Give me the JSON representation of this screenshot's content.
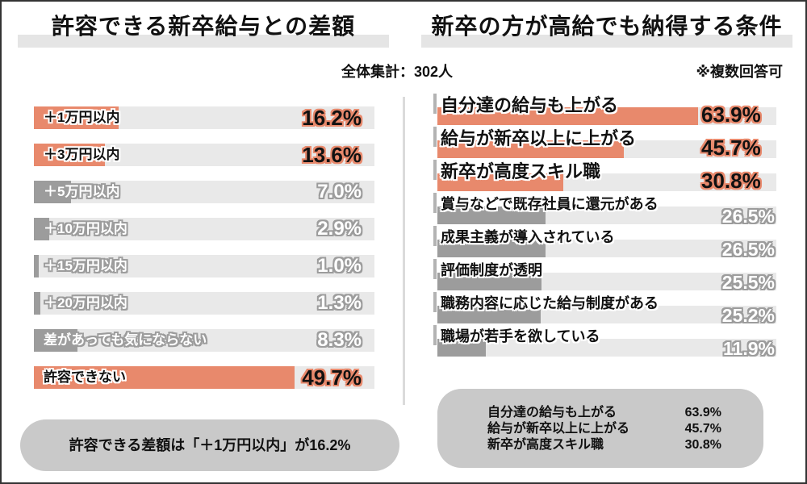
{
  "header": {
    "subtitle": "全体集計：302人",
    "note": "※複数回答可"
  },
  "chart_data": [
    {
      "type": "bar",
      "orientation": "horizontal",
      "title": "許容できる新卒給与との差額",
      "unit": "%",
      "categories": [
        "＋1万円以内",
        "＋3万円以内",
        "＋5万円以内",
        "＋10万円以内",
        "＋15万円以内",
        "＋20万円以内",
        "差があっても気にならない",
        "許容できない"
      ],
      "values": [
        16.2,
        13.6,
        7.0,
        2.9,
        1.0,
        1.3,
        8.3,
        49.7
      ],
      "highlighted": [
        true,
        true,
        false,
        false,
        false,
        false,
        false,
        true
      ],
      "axis_max_display": 65,
      "grid": false,
      "legend": "none"
    },
    {
      "type": "bar",
      "orientation": "horizontal",
      "title": "新卒の方が高給でも納得する条件",
      "unit": "%",
      "note": "※複数回答可",
      "categories": [
        "自分達の給与も上がる",
        "給与が新卒以上に上がる",
        "新卒が高度スキル職",
        "賞与などで既存社員に還元がある",
        "成果主義が導入されている",
        "評価制度が透明",
        "職務内容に応じた給与制度がある",
        "職場が若手を欲している"
      ],
      "values": [
        63.9,
        45.7,
        30.8,
        26.5,
        26.5,
        25.5,
        25.2,
        11.9
      ],
      "highlighted": [
        true,
        true,
        true,
        false,
        false,
        false,
        false,
        false
      ],
      "axis_max_display": 83,
      "grid": false,
      "legend": "none"
    }
  ],
  "summary_left": {
    "text": "許容できる差額は「＋1万円以内」が16.2%"
  },
  "summary_right": {
    "rows": [
      {
        "label": "自分達の給与も上がる",
        "value": "63.9%"
      },
      {
        "label": "給与が新卒以上に上がる",
        "value": "45.7%"
      },
      {
        "label": "新卒が高度スキル職",
        "value": "30.8%"
      }
    ]
  },
  "colors": {
    "accent_salmon": "#E8896C",
    "bar_gray": "#9C9C9C",
    "track_gray": "#E9E9E9",
    "title_highlight": "#E5E5E5",
    "summary_box_gray": "#C9C9C9",
    "divider_gray": "#DBDBDB",
    "frame_border": "#333333",
    "text_black": "#111111",
    "text_white": "#FFFFFF"
  }
}
